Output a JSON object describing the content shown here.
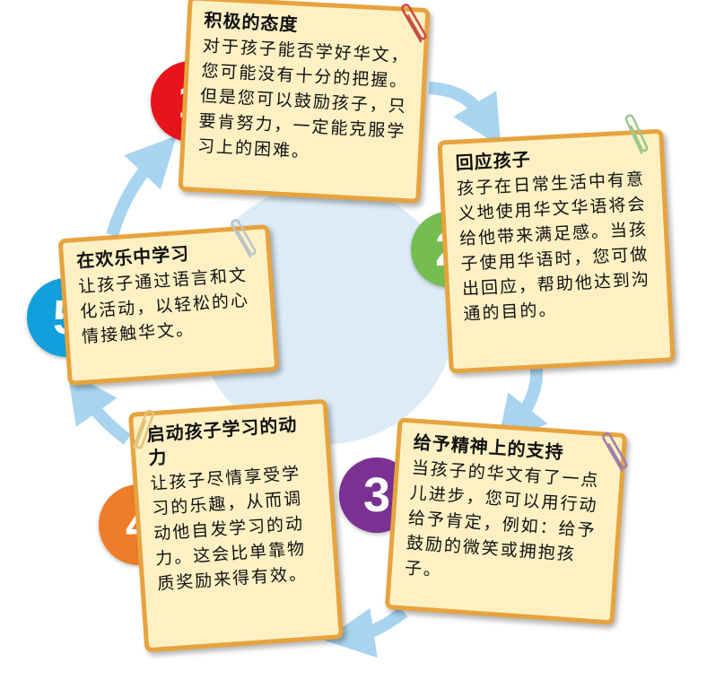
{
  "steps": [
    {
      "number": "1",
      "title": "积极的态度",
      "text": "对于孩子能否学好华文，您可能没有十分的把握。但是您可以鼓励孩子，只要肯努力，一定能克服学习上的困难。",
      "color": "#e8141b"
    },
    {
      "number": "2",
      "title": "回应孩子",
      "text": "孩子在日常生活中有意义地使用华文华语将会给他带来满足感。当孩子使用华语时，您可做出回应，帮助他达到沟通的目的。",
      "color": "#76bd4f"
    },
    {
      "number": "3",
      "title": "给予精神上的支持",
      "text": "当孩子的华文有了一点儿进步，您可以用行动给予肯定，例如：给予鼓励的微笑或拥抱孩子。",
      "color": "#7a3192"
    },
    {
      "number": "4",
      "title": "启动孩子学习的动力",
      "text": "让孩子尽情享受学习的乐趣，从而调动他自发学习的动力。这会比单靠物质奖励来得有效。",
      "color": "#ee7c28"
    },
    {
      "number": "5",
      "title": "在欢乐中学习",
      "text": "让孩子通过语言和文化活动，以轻松的心情接触华文。",
      "color": "#12a0dc"
    }
  ],
  "colors": {
    "card_bg": "#fdf1c4",
    "card_border": "#e7a33e",
    "arrow": "#a8d4ef",
    "center": "#dcecf7"
  }
}
